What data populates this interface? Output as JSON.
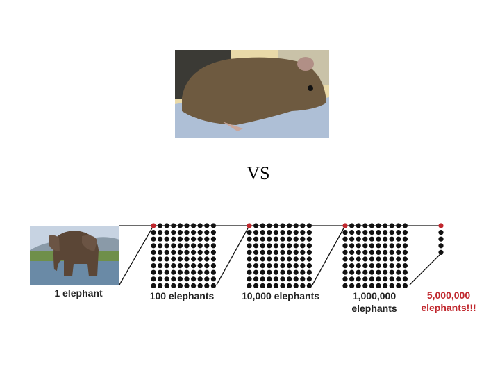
{
  "slide": {
    "title": "VS",
    "labels": [
      [
        "1 elephant"
      ],
      [
        "100 elephants"
      ],
      [
        "10,000 elephants"
      ],
      [
        "1,000,000",
        "elephants"
      ],
      [
        "5,000,000",
        "elephants!!!"
      ]
    ]
  }
}
